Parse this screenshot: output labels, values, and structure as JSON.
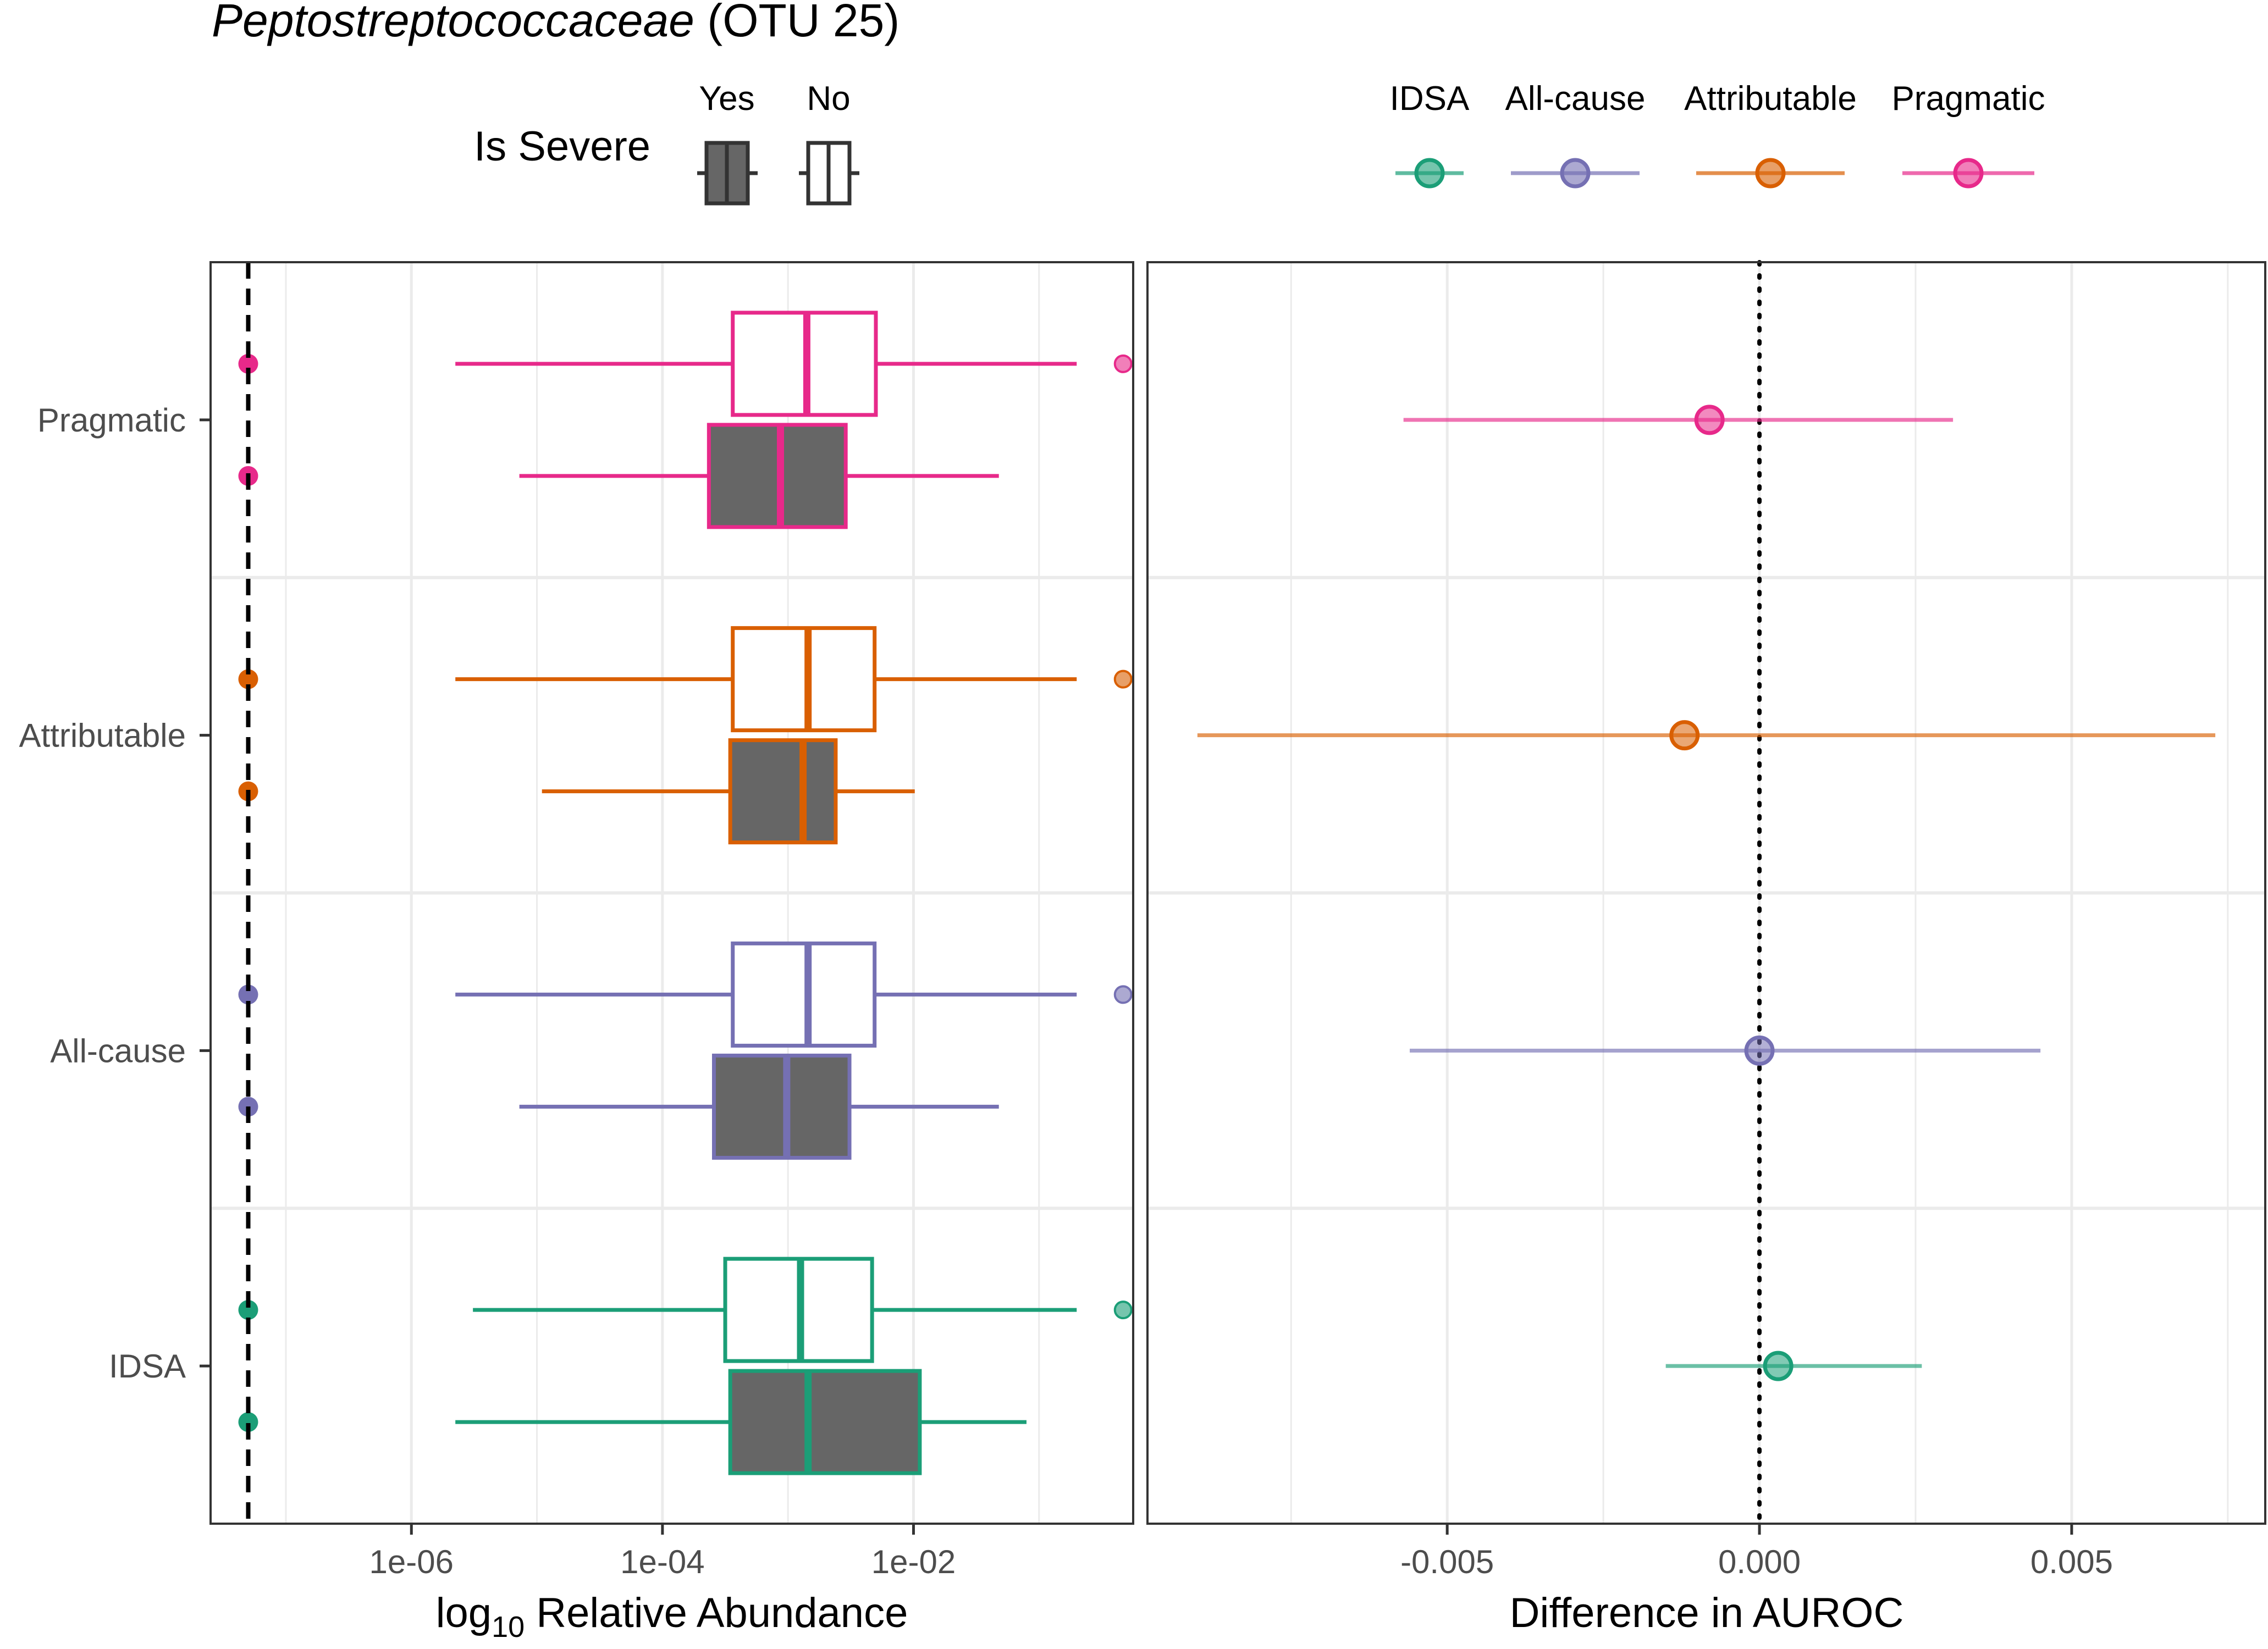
{
  "title": {
    "taxon": "Peptostreptococcaceae",
    "otu": "(OTU 25)"
  },
  "legend_severe": {
    "title": "Is Severe",
    "keys": [
      {
        "label": "Yes",
        "fill": "#666666"
      },
      {
        "label": "No",
        "fill": "#ffffff"
      }
    ]
  },
  "legend_outcome": {
    "keys": [
      "IDSA",
      "All-cause",
      "Attributable",
      "Pragmatic"
    ]
  },
  "colors": {
    "IDSA": "#1B9E77",
    "All-cause": "#7570B3",
    "Attributable": "#D95F02",
    "Pragmatic": "#E7298A",
    "severe_fill": "#666666",
    "panel_border": "#333333",
    "grid": "#ebebeb"
  },
  "chart_data": [
    {
      "type": "box",
      "title": "",
      "xlabel_prefix": "log",
      "xlabel_sub": "10",
      "xlabel_rest": " Relative Abundance",
      "x_scale": "log10",
      "xlim_log10": [
        -7.6,
        -0.25
      ],
      "x_tick_labels": [
        "1e-06",
        "1e-04",
        "1e-02"
      ],
      "x_tick_log10": [
        -6,
        -4,
        -2
      ],
      "limit_of_detection_log10": -7.3,
      "categories": [
        "Pragmatic",
        "Attributable",
        "All-cause",
        "IDSA"
      ],
      "groups": [
        {
          "outcome": "Pragmatic",
          "no": {
            "q1": -3.44,
            "median": -2.85,
            "q3": -2.3,
            "whisker_low": -5.65,
            "whisker_high": -0.7,
            "outlier_high": -0.33,
            "zero_point": -7.3
          },
          "yes": {
            "q1": -3.63,
            "median": -3.06,
            "q3": -2.54,
            "whisker_low": -5.14,
            "whisker_high": -1.32,
            "zero_point": -7.3
          }
        },
        {
          "outcome": "Attributable",
          "no": {
            "q1": -3.44,
            "median": -2.84,
            "q3": -2.31,
            "whisker_low": -5.65,
            "whisker_high": -0.7,
            "outlier_high": -0.33,
            "zero_point": -7.3
          },
          "yes": {
            "q1": -3.46,
            "median": -2.88,
            "q3": -2.62,
            "whisker_low": -4.96,
            "whisker_high": -1.99,
            "zero_point": -7.3
          }
        },
        {
          "outcome": "All-cause",
          "no": {
            "q1": -3.44,
            "median": -2.84,
            "q3": -2.31,
            "whisker_low": -5.65,
            "whisker_high": -0.7,
            "outlier_high": -0.33,
            "zero_point": -7.3
          },
          "yes": {
            "q1": -3.59,
            "median": -3.01,
            "q3": -2.51,
            "whisker_low": -5.14,
            "whisker_high": -1.32,
            "zero_point": -7.3
          }
        },
        {
          "outcome": "IDSA",
          "no": {
            "q1": -3.5,
            "median": -2.9,
            "q3": -2.33,
            "whisker_low": -5.51,
            "whisker_high": -0.7,
            "outlier_high": -0.33,
            "zero_point": -7.3
          },
          "yes": {
            "q1": -3.46,
            "median": -2.84,
            "q3": -1.95,
            "whisker_low": -5.65,
            "whisker_high": -1.1,
            "zero_point": -7.3
          }
        }
      ]
    },
    {
      "type": "pointrange",
      "title": "",
      "xlabel": "Difference in AUROC",
      "xlim": [
        -0.0098,
        0.0081
      ],
      "x_ticks": [
        -0.005,
        0.0,
        0.005
      ],
      "x_tick_labels": [
        "-0.005",
        "0.000",
        "0.005"
      ],
      "reference_line": 0.0,
      "categories": [
        "Pragmatic",
        "Attributable",
        "All-cause",
        "IDSA"
      ],
      "points": [
        {
          "outcome": "Pragmatic",
          "estimate": -0.0008,
          "lower": -0.0057,
          "upper": 0.0031
        },
        {
          "outcome": "Attributable",
          "estimate": -0.0012,
          "lower": -0.009,
          "upper": 0.0073
        },
        {
          "outcome": "All-cause",
          "estimate": 0.0,
          "lower": -0.0056,
          "upper": 0.0045
        },
        {
          "outcome": "IDSA",
          "estimate": 0.0003,
          "lower": -0.0015,
          "upper": 0.0026
        }
      ]
    }
  ]
}
